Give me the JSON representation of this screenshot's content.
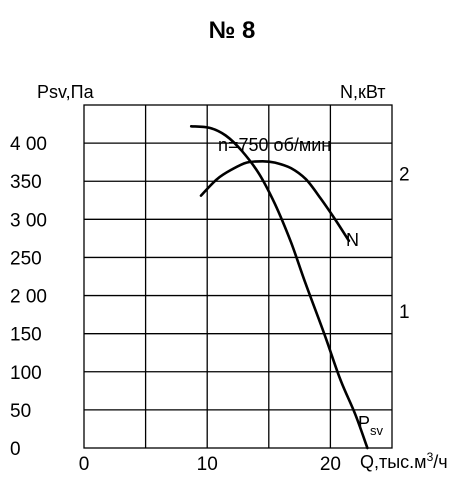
{
  "chart_data": {
    "type": "line",
    "title": "№ 8",
    "annotation": "n=750 об/мин",
    "xlabel": "Q,тыс.м",
    "xlabel_sup": "3",
    "xlabel_suffix": "/ч",
    "ylabel_left": "Psv,Па",
    "ylabel_right": "N,кВт",
    "xlim": [
      0,
      25
    ],
    "ylim_left": [
      0,
      450
    ],
    "ylim_right": [
      0,
      2.5
    ],
    "x_ticks": [
      {
        "value": 0,
        "label": "0"
      },
      {
        "value": 10,
        "label": "10"
      },
      {
        "value": 20,
        "label": "20"
      }
    ],
    "y_ticks_left": [
      {
        "value": 0,
        "label": "0"
      },
      {
        "value": 50,
        "label": "50"
      },
      {
        "value": 100,
        "label": "100"
      },
      {
        "value": 150,
        "label": "150"
      },
      {
        "value": 200,
        "label": "2 00"
      },
      {
        "value": 250,
        "label": "250"
      },
      {
        "value": 300,
        "label": "3 00"
      },
      {
        "value": 350,
        "label": "350"
      },
      {
        "value": 400,
        "label": "4 00"
      }
    ],
    "y_ticks_right": [
      {
        "value": 1,
        "label": "1"
      },
      {
        "value": 2,
        "label": "2"
      }
    ],
    "series": [
      {
        "name": "Psv",
        "axis": "left",
        "label_main": "P",
        "label_sub": "sv",
        "x": [
          8.7,
          10.2,
          11.5,
          12.8,
          14.2,
          15.5,
          16.8,
          18.0,
          19.5,
          20.8,
          22.0,
          23.0
        ],
        "y": [
          422,
          420,
          410,
          390,
          360,
          320,
          270,
          215,
          150,
          90,
          45,
          0
        ]
      },
      {
        "name": "N",
        "axis": "right",
        "label_main": "N",
        "x": [
          9.5,
          10.8,
          12.0,
          13.2,
          14.5,
          15.5,
          16.8,
          18.0,
          19.2,
          20.5,
          21.5
        ],
        "y": [
          1.84,
          1.96,
          2.03,
          2.08,
          2.09,
          2.08,
          2.04,
          1.96,
          1.82,
          1.65,
          1.51
        ]
      }
    ]
  }
}
